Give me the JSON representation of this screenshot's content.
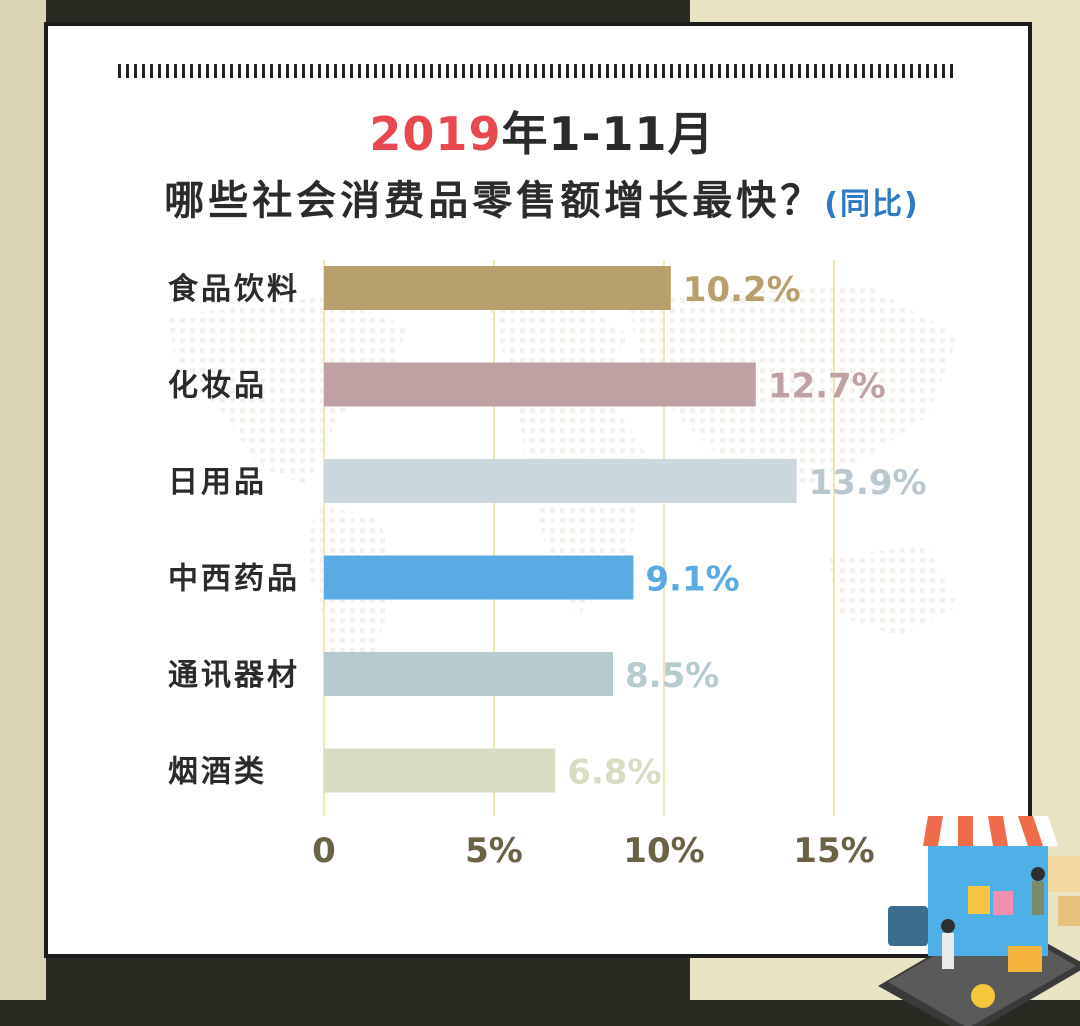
{
  "title": {
    "part1": "2019",
    "part2": "年1-11月",
    "line2": "哪些社会消费品零售额增长最快？",
    "line2_sub": "(同比)"
  },
  "colors": {
    "title_red": "#e8484f",
    "title_blue": "#2e79c4",
    "gridline": "#f0e6b0",
    "tick_label": "#6b6246"
  },
  "chart_data": {
    "type": "bar",
    "orientation": "horizontal",
    "categories": [
      "食品饮料",
      "化妆品",
      "日用品",
      "中西药品",
      "通讯器材",
      "烟酒类"
    ],
    "values": [
      10.2,
      12.7,
      13.9,
      9.1,
      8.5,
      6.8
    ],
    "value_labels": [
      "10.2%",
      "12.7%",
      "13.9%",
      "9.1%",
      "8.5%",
      "6.8%"
    ],
    "bar_colors": [
      "#b8a06c",
      "#bfa1a3",
      "#cad7dd",
      "#5aabe4",
      "#b5cbcf",
      "#d7dcc3"
    ],
    "x_ticks": [
      0,
      5,
      10,
      15
    ],
    "x_tick_labels": [
      "0",
      "5%",
      "10%",
      "15%"
    ],
    "xlim": [
      0,
      15
    ],
    "grid": true,
    "ylabel": "",
    "xlabel": ""
  }
}
